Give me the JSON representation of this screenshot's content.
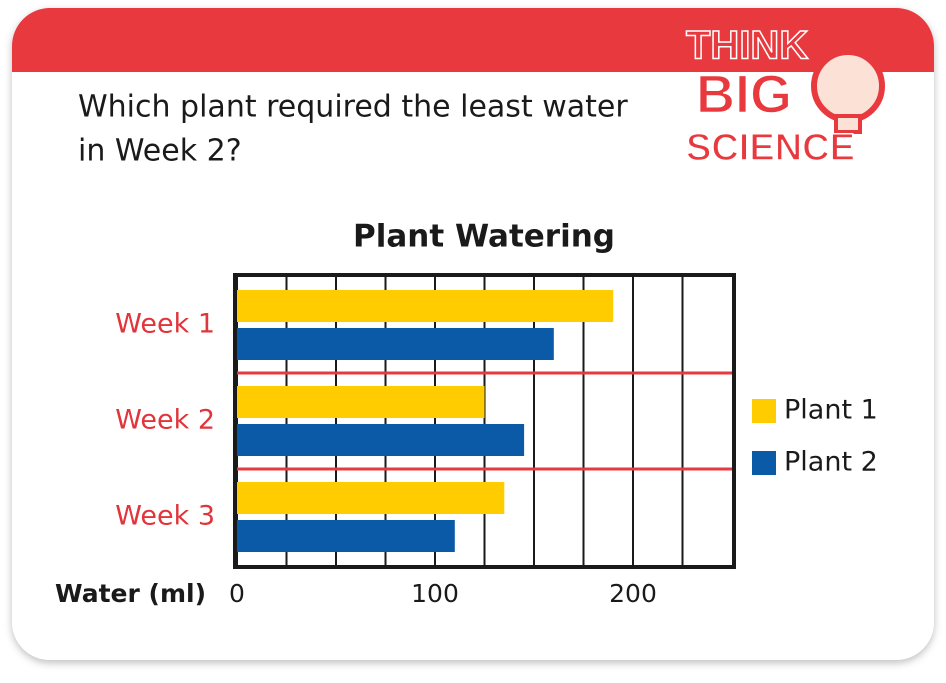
{
  "question": [
    "Which plant required the least water",
    "in Week 2?"
  ],
  "logo": [
    "THINK",
    "BIG",
    "SCIENCE"
  ],
  "chart_data": {
    "type": "hbar",
    "title": "Plant Watering",
    "categories": [
      "Week 1",
      "Week 2",
      "Week 3"
    ],
    "series": [
      {
        "name": "Plant 1",
        "color": "#ffcc00",
        "values": [
          190,
          125,
          135
        ]
      },
      {
        "name": "Plant 2",
        "color": "#0a5aa8",
        "values": [
          160,
          145,
          110
        ]
      }
    ],
    "x_label": "Water (ml)",
    "xlim": [
      0,
      250
    ],
    "xticks": [
      0,
      100,
      200
    ],
    "minor_xticks": [
      25,
      50,
      75,
      125,
      150,
      175,
      225
    ],
    "grid": true,
    "legend": "right"
  }
}
